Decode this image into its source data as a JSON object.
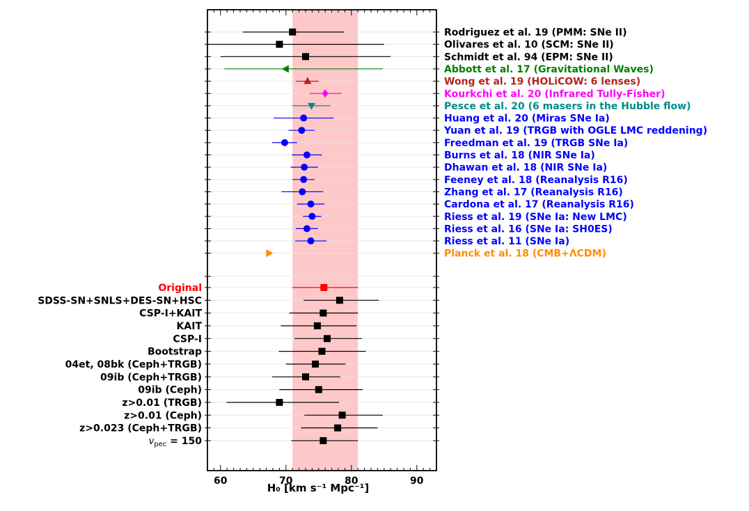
{
  "chart_data": {
    "type": "scatter",
    "subtype": "forest-plot-with-horizontal-error-bars",
    "title": "",
    "xlabel": "H₀ [km s⁻¹ Mpc⁻¹]",
    "ylabel": "",
    "xlim": [
      58,
      93
    ],
    "x_ticks": [
      60,
      70,
      80,
      90
    ],
    "x_tick_labels": [
      "60",
      "70",
      "80",
      "90"
    ],
    "shaded_band": {
      "x0": 71.0,
      "x1": 81.0,
      "color": "#ffc8c8"
    },
    "grid": "horizontal lines at each row",
    "series": [
      {
        "label_side": "right",
        "points": [
          {
            "label": "Rodriguez et al. 19 (PMM: SNe II)",
            "value": 71.0,
            "low": 63.4,
            "high": 78.9,
            "marker": "square",
            "color": "#000000"
          },
          {
            "label": "Olivares et al. 10 (SCM: SNe II)",
            "value": 69.0,
            "low": 58.0,
            "high": 85.0,
            "marker": "square",
            "color": "#000000"
          },
          {
            "label": "Schmidt et al. 94 (EPM: SNe II)",
            "value": 73.0,
            "low": 60.0,
            "high": 86.0,
            "marker": "square",
            "color": "#000000"
          },
          {
            "label": "Abbott et al. 17 (Gravitational Waves)",
            "value": 70.0,
            "low": 60.6,
            "high": 84.8,
            "marker": "triangle-left",
            "color": "#008000"
          },
          {
            "label": "Wong et al. 19 (HOLiCOW: 6 lenses)",
            "value": 73.3,
            "low": 71.5,
            "high": 75.0,
            "marker": "triangle-up",
            "color": "#b22222"
          },
          {
            "label": "Kourkchi et al. 20 (Infrared Tully-Fisher)",
            "value": 76.0,
            "low": 73.6,
            "high": 78.5,
            "marker": "diamond",
            "color": "#ff00ff"
          },
          {
            "label": "Pesce et al. 20 (6 masers in the Hubble flow)",
            "value": 73.9,
            "low": 71.0,
            "high": 76.8,
            "marker": "triangle-down",
            "color": "#008b8b"
          },
          {
            "label": "Huang et al. 20 (Miras SNe Ia)",
            "value": 72.7,
            "low": 68.1,
            "high": 77.3,
            "marker": "circle",
            "color": "#0000ff"
          },
          {
            "label": "Yuan et al. 19 (TRGB with OGLE LMC reddening)",
            "value": 72.4,
            "low": 70.4,
            "high": 74.4,
            "marker": "circle",
            "color": "#0000ff"
          },
          {
            "label": "Freedman et al. 19 (TRGB SNe Ia)",
            "value": 69.8,
            "low": 67.9,
            "high": 71.7,
            "marker": "circle",
            "color": "#0000ff"
          },
          {
            "label": "Burns et al. 18 (NIR SNe Ia)",
            "value": 73.2,
            "low": 70.9,
            "high": 75.5,
            "marker": "circle",
            "color": "#0000ff"
          },
          {
            "label": "Dhawan et al. 18 (NIR SNe Ia)",
            "value": 72.8,
            "low": 70.7,
            "high": 74.9,
            "marker": "circle",
            "color": "#0000ff"
          },
          {
            "label": "Feeney et al. 18 (Reanalysis R16)",
            "value": 72.7,
            "low": 71.0,
            "high": 74.4,
            "marker": "circle",
            "color": "#0000ff"
          },
          {
            "label": "Zhang et al. 17 (Reanalysis R16)",
            "value": 72.5,
            "low": 69.3,
            "high": 75.7,
            "marker": "circle",
            "color": "#0000ff"
          },
          {
            "label": "Cardona et al. 17 (Reanalysis R16)",
            "value": 73.8,
            "low": 71.7,
            "high": 75.9,
            "marker": "circle",
            "color": "#0000ff"
          },
          {
            "label": "Riess et al. 19 (SNe Ia: New LMC)",
            "value": 74.0,
            "low": 72.6,
            "high": 75.4,
            "marker": "circle",
            "color": "#0000ff"
          },
          {
            "label": "Riess et al. 16 (SNe Ia: SH0ES)",
            "value": 73.2,
            "low": 71.5,
            "high": 74.9,
            "marker": "circle",
            "color": "#0000ff"
          },
          {
            "label": "Riess et al. 11 (SNe Ia)",
            "value": 73.8,
            "low": 71.4,
            "high": 76.2,
            "marker": "circle",
            "color": "#0000ff"
          },
          {
            "label": "Planck et al. 18 (CMB+ΛCDM)",
            "value": 67.4,
            "low": 66.9,
            "high": 67.9,
            "marker": "triangle-right",
            "color": "#ff8c00"
          }
        ]
      },
      {
        "label_side": "left",
        "points": [
          {
            "label": "Original",
            "value": 75.8,
            "low": 71.0,
            "high": 81.0,
            "marker": "square",
            "color": "#ff0000"
          },
          {
            "label": "SDSS-SN+SNLS+DES-SN+HSC",
            "value": 78.2,
            "low": 72.7,
            "high": 84.2,
            "marker": "square",
            "color": "#000000"
          },
          {
            "label": "CSP-I+KAIT",
            "value": 75.7,
            "low": 70.5,
            "high": 81.0,
            "marker": "square",
            "color": "#000000"
          },
          {
            "label": "KAIT",
            "value": 74.8,
            "low": 69.2,
            "high": 80.8,
            "marker": "square",
            "color": "#000000"
          },
          {
            "label": "CSP-I",
            "value": 76.3,
            "low": 71.3,
            "high": 81.6,
            "marker": "square",
            "color": "#000000"
          },
          {
            "label": "Bootstrap",
            "value": 75.5,
            "low": 68.9,
            "high": 82.2,
            "marker": "square",
            "color": "#000000"
          },
          {
            "label": "04et, 08bk (Ceph+TRGB)",
            "value": 74.5,
            "low": 70.0,
            "high": 79.1,
            "marker": "square",
            "color": "#000000"
          },
          {
            "label": "09ib (Ceph+TRGB)",
            "value": 73.0,
            "low": 67.9,
            "high": 78.3,
            "marker": "square",
            "color": "#000000"
          },
          {
            "label": "09ib (Ceph)",
            "value": 75.0,
            "low": 69.0,
            "high": 81.7,
            "marker": "square",
            "color": "#000000"
          },
          {
            "label": "z>0.01 (TRGB)",
            "value": 69.0,
            "low": 60.9,
            "high": 78.1,
            "marker": "square",
            "color": "#000000"
          },
          {
            "label": "z>0.01 (Ceph)",
            "value": 78.6,
            "low": 72.8,
            "high": 84.8,
            "marker": "square",
            "color": "#000000"
          },
          {
            "label": "z>0.023 (Ceph+TRGB)",
            "value": 77.9,
            "low": 72.3,
            "high": 84.0,
            "marker": "square",
            "color": "#000000"
          },
          {
            "label": "v_pec = 150",
            "value": 75.7,
            "low": 70.8,
            "high": 81.0,
            "marker": "square",
            "color": "#000000"
          }
        ]
      }
    ]
  }
}
